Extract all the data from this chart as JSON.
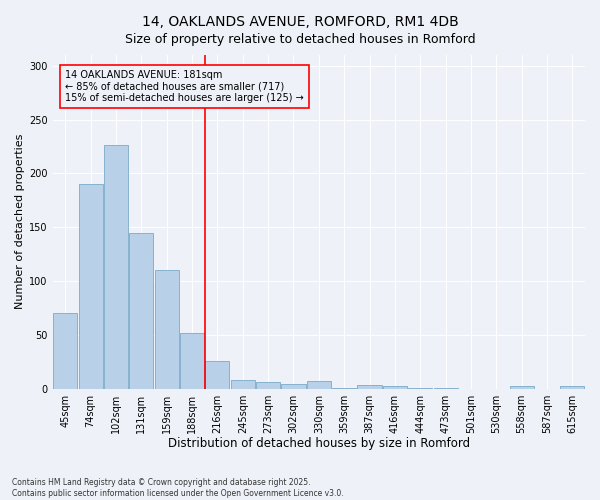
{
  "title": "14, OAKLANDS AVENUE, ROMFORD, RM1 4DB",
  "subtitle": "Size of property relative to detached houses in Romford",
  "xlabel": "Distribution of detached houses by size in Romford",
  "ylabel": "Number of detached properties",
  "bar_values": [
    70,
    190,
    226,
    145,
    110,
    52,
    26,
    8,
    6,
    4,
    7,
    1,
    3,
    2,
    1,
    1,
    0,
    0,
    2,
    0,
    2
  ],
  "categories": [
    "45sqm",
    "74sqm",
    "102sqm",
    "131sqm",
    "159sqm",
    "188sqm",
    "216sqm",
    "245sqm",
    "273sqm",
    "302sqm",
    "330sqm",
    "359sqm",
    "387sqm",
    "416sqm",
    "444sqm",
    "473sqm",
    "501sqm",
    "530sqm",
    "558sqm",
    "587sqm",
    "615sqm"
  ],
  "bar_color": "#b8d0e8",
  "bar_edge_color": "#6a9fc0",
  "vline_x": 5.5,
  "vline_color": "red",
  "annotation_line1": "14 OAKLANDS AVENUE: 181sqm",
  "annotation_line2": "← 85% of detached houses are smaller (717)",
  "annotation_line3": "15% of semi-detached houses are larger (125) →",
  "ylim": [
    0,
    310
  ],
  "yticks": [
    0,
    50,
    100,
    150,
    200,
    250,
    300
  ],
  "bg_color": "#eef2f8",
  "footer": "Contains HM Land Registry data © Crown copyright and database right 2025.\nContains public sector information licensed under the Open Government Licence v3.0.",
  "title_fontsize": 10,
  "subtitle_fontsize": 9,
  "xlabel_fontsize": 8.5,
  "ylabel_fontsize": 8,
  "tick_fontsize": 7,
  "footer_fontsize": 5.5,
  "ann_fontsize": 7
}
